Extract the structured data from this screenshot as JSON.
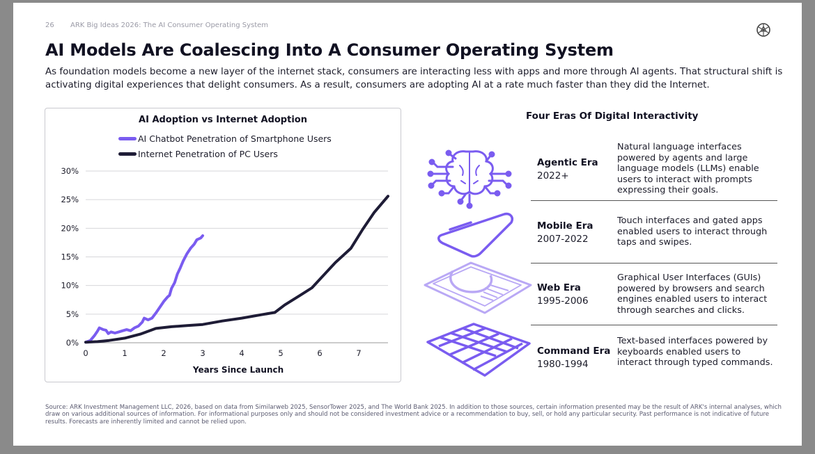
{
  "header": {
    "page_number": "26",
    "deck_title": "ARK Big Ideas 2026: The AI Consumer Operating System"
  },
  "title": "AI Models Are Coalescing Into A Consumer Operating System",
  "subtitle": "As foundation models become a new layer of the internet stack, consumers are interacting less with apps and more through AI agents. That structural shift is activating digital experiences that delight consumers. As a result, consumers are adopting AI at a rate much faster than they did the Internet.",
  "colors": {
    "ai_series": "#7a5cf0",
    "internet_series": "#1e1c36",
    "icon_purple": "#7a5cf0",
    "icon_light": "#b9a8f5"
  },
  "chart_data": {
    "type": "line",
    "title": "AI Adoption vs Internet Adoption",
    "xlabel": "Years Since Launch",
    "ylabel": "",
    "xlim": [
      0,
      7.75
    ],
    "ylim": [
      0,
      30
    ],
    "x_ticks": [
      "0",
      "1",
      "2",
      "3",
      "4",
      "5",
      "6",
      "7"
    ],
    "y_ticks": [
      "0%",
      "5%",
      "10%",
      "15%",
      "20%",
      "25%",
      "30%"
    ],
    "legend_position": "top",
    "grid": "horizontal",
    "series": [
      {
        "name": "AI Chatbot Penetration of Smartphone Users",
        "color": "#7a5cf0",
        "points": [
          [
            0,
            0.1
          ],
          [
            0.12,
            0.4
          ],
          [
            0.22,
            1.2
          ],
          [
            0.3,
            2.0
          ],
          [
            0.35,
            2.6
          ],
          [
            0.45,
            2.3
          ],
          [
            0.52,
            2.2
          ],
          [
            0.58,
            1.6
          ],
          [
            0.65,
            1.9
          ],
          [
            0.75,
            1.7
          ],
          [
            0.85,
            1.9
          ],
          [
            0.95,
            2.1
          ],
          [
            1.05,
            2.3
          ],
          [
            1.15,
            2.1
          ],
          [
            1.25,
            2.6
          ],
          [
            1.35,
            2.9
          ],
          [
            1.45,
            3.6
          ],
          [
            1.5,
            4.3
          ],
          [
            1.6,
            4.0
          ],
          [
            1.7,
            4.3
          ],
          [
            1.8,
            5.2
          ],
          [
            1.9,
            6.2
          ],
          [
            2.0,
            7.2
          ],
          [
            2.1,
            8.0
          ],
          [
            2.15,
            8.3
          ],
          [
            2.2,
            9.5
          ],
          [
            2.28,
            10.5
          ],
          [
            2.35,
            12.0
          ],
          [
            2.42,
            13.0
          ],
          [
            2.5,
            14.3
          ],
          [
            2.6,
            15.6
          ],
          [
            2.7,
            16.6
          ],
          [
            2.78,
            17.2
          ],
          [
            2.85,
            18.0
          ],
          [
            2.95,
            18.3
          ],
          [
            3.0,
            18.7
          ]
        ]
      },
      {
        "name": "Internet Penetration of PC Users",
        "color": "#1e1c36",
        "points": [
          [
            0,
            0.1
          ],
          [
            0.3,
            0.2
          ],
          [
            0.6,
            0.4
          ],
          [
            1.0,
            0.8
          ],
          [
            1.4,
            1.5
          ],
          [
            1.8,
            2.5
          ],
          [
            2.2,
            2.8
          ],
          [
            2.6,
            3.0
          ],
          [
            3.0,
            3.2
          ],
          [
            3.5,
            3.8
          ],
          [
            4.0,
            4.3
          ],
          [
            4.5,
            4.9
          ],
          [
            4.85,
            5.3
          ],
          [
            5.1,
            6.6
          ],
          [
            5.5,
            8.3
          ],
          [
            5.8,
            9.6
          ],
          [
            6.1,
            11.8
          ],
          [
            6.4,
            14.0
          ],
          [
            6.8,
            16.5
          ],
          [
            7.1,
            19.8
          ],
          [
            7.4,
            22.8
          ],
          [
            7.75,
            25.6
          ]
        ]
      }
    ]
  },
  "eras": {
    "title": "Four Eras Of Digital Interactivity",
    "items": [
      {
        "name": "Agentic Era",
        "years": "2022+",
        "description": "Natural language interfaces powered by agents and large language models (LLMs) enable users to interact with prompts expressing their goals.",
        "icon": "brain-circuit-icon"
      },
      {
        "name": "Mobile Era",
        "years": "2007-2022",
        "description": "Touch interfaces and gated apps enabled users to interact through taps and swipes.",
        "icon": "smartphone-icon"
      },
      {
        "name": "Web Era",
        "years": "1995-2006",
        "description": "Graphical User Interfaces (GUIs) powered by browsers and search engines enabled users to interact through searches and clicks.",
        "icon": "browser-window-icon"
      },
      {
        "name": "Command Era",
        "years": "1980-1994",
        "description": "Text-based interfaces powered by keyboards enabled users to interact through typed commands.",
        "icon": "keyboard-grid-icon"
      }
    ]
  },
  "source_note": "Source: ARK Investment Management LLC, 2026, based on data from Similarweb 2025, SensorTower 2025, and The World Bank 2025. In addition to those sources, certain information presented may be the result of ARK's internal analyses, which draw on various additional sources of information. For informational purposes only and should not be considered investment advice or a recommendation to buy, sell, or hold any particular security. Past performance is not indicative of future results. Forecasts are inherently limited and cannot be relied upon."
}
